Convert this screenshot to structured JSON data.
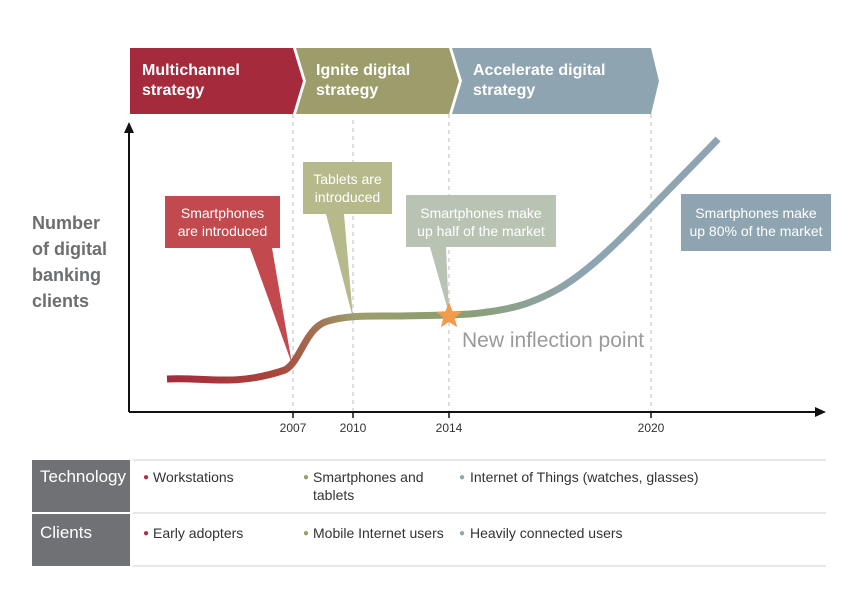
{
  "phases": [
    {
      "label": "Multichannel\nstrategy",
      "color": "#a42a3c"
    },
    {
      "label": "Ignite digital\nstrategy",
      "color": "#9c9d6b"
    },
    {
      "label": "Accelerate digital\nstrategy",
      "color": "#8ea4b1"
    }
  ],
  "y_axis_title": "Number\nof digital\nbanking\nclients",
  "years": [
    "2007",
    "2010",
    "2014",
    "2020"
  ],
  "callouts": [
    {
      "text": "Smartphones\nare introduced",
      "color": "#c2494e"
    },
    {
      "text": "Tablets are\nintroduced",
      "color": "#b6b98a"
    },
    {
      "text": "Smartphones make\nup half of the market",
      "color": "#b9c3b4"
    },
    {
      "text": "Smartphones make\nup 80% of the market",
      "color": "#8ea4b1"
    }
  ],
  "inflection_label": "New inflection point",
  "table": {
    "rows": [
      {
        "header": "Technology",
        "cells": [
          "Workstations",
          "Smartphones and\ntablets",
          "Internet of Things (watches, glasses)"
        ]
      },
      {
        "header": "Clients",
        "cells": [
          "Early adopters",
          "Mobile Internet users",
          "Heavily connected users"
        ]
      }
    ],
    "bullet_colors": [
      "#b03040",
      "#9c9d6b",
      "#8ea4b1"
    ]
  }
}
